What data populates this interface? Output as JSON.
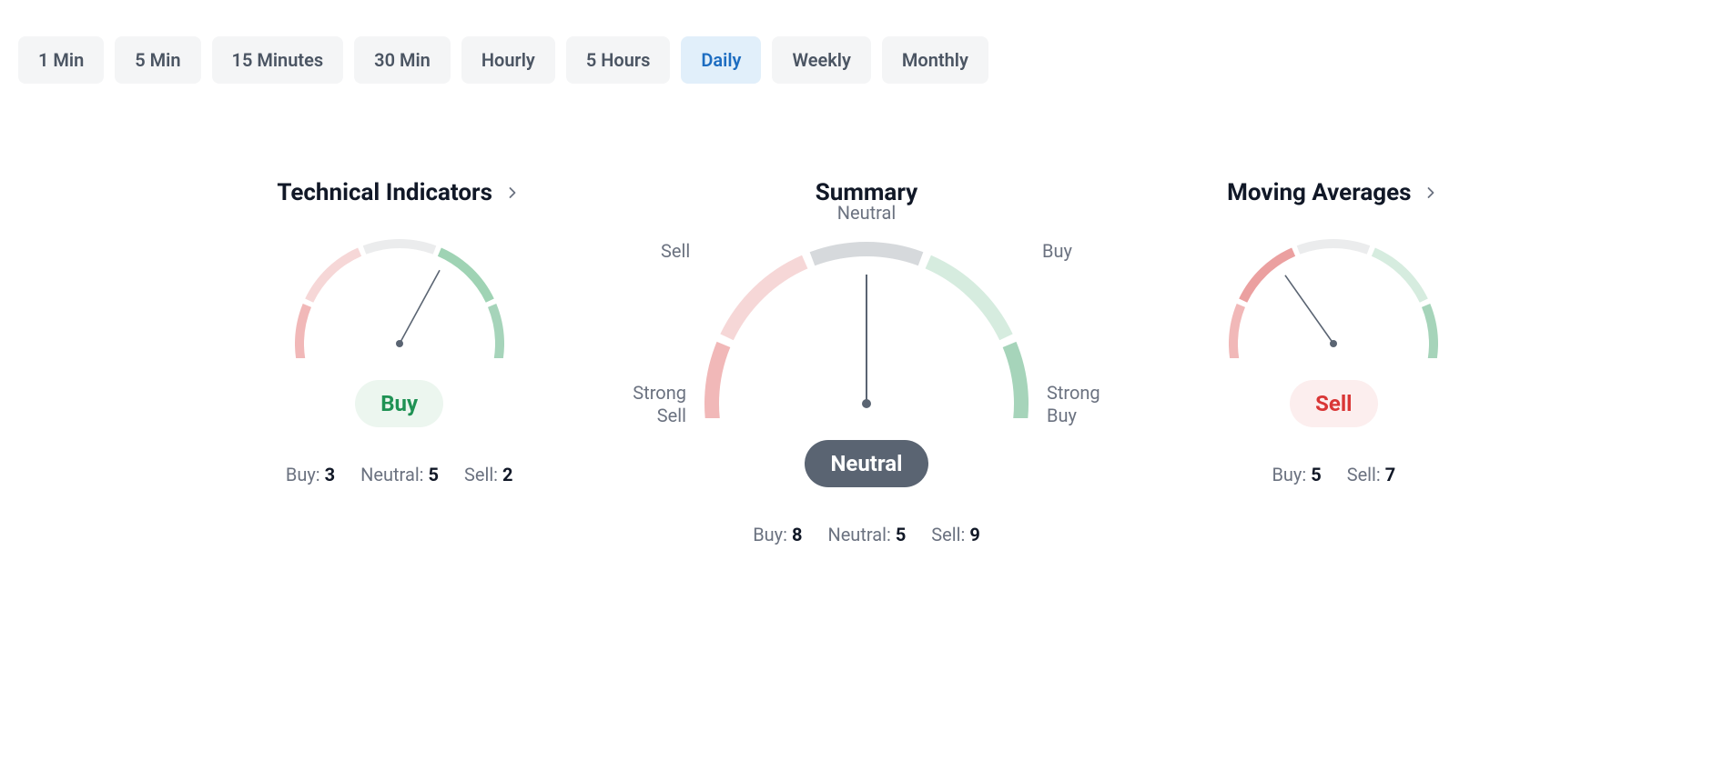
{
  "timeframes": {
    "items": [
      "1 Min",
      "5 Min",
      "15 Minutes",
      "30 Min",
      "Hourly",
      "5 Hours",
      "Daily",
      "Weekly",
      "Monthly"
    ],
    "active_index": 6,
    "tab_bg": "#f4f5f6",
    "tab_fg": "#4b5563",
    "tab_active_bg": "#e1effa",
    "tab_active_fg": "#1d6dc1"
  },
  "gauge_style": {
    "segments": [
      {
        "key": "strong_sell",
        "color": "#e04d4d",
        "faded_color": "#f1b8b8"
      },
      {
        "key": "sell",
        "color": "#eba0a0",
        "faded_color": "#f6d7d7"
      },
      {
        "key": "neutral",
        "color": "#d6d9dc",
        "faded_color": "#ebeced"
      },
      {
        "key": "buy",
        "color": "#9fd3b4",
        "faded_color": "#d6ecdf"
      },
      {
        "key": "strong_buy",
        "color": "#1f9254",
        "faded_color": "#a6d4ba"
      }
    ],
    "start_deg": 200,
    "end_deg": -20,
    "gap_deg": 3,
    "needle_color": "#5a6472",
    "background": "#ffffff"
  },
  "panels": {
    "left": {
      "title": "Technical Indicators",
      "has_chevron": true,
      "size": "small",
      "result": {
        "label": "Buy",
        "key": "buy",
        "bg": "#ecf6ef",
        "fg": "#1f9254"
      },
      "needle_value": 0.63,
      "active_segment": "buy",
      "labels": [],
      "stats": [
        {
          "label": "Buy:",
          "value": "3"
        },
        {
          "label": "Neutral:",
          "value": "5"
        },
        {
          "label": "Sell:",
          "value": "2"
        }
      ]
    },
    "center": {
      "title": "Summary",
      "has_chevron": false,
      "size": "large",
      "result": {
        "label": "Neutral",
        "key": "neutral",
        "bg": "#5a6472",
        "fg": "#ffffff"
      },
      "needle_value": 0.5,
      "active_segment": "neutral",
      "labels": [
        {
          "text": "Strong Sell",
          "pos": "ss"
        },
        {
          "text": "Sell",
          "pos": "s"
        },
        {
          "text": "Neutral",
          "pos": "n"
        },
        {
          "text": "Buy",
          "pos": "b"
        },
        {
          "text": "Strong Buy",
          "pos": "sb"
        }
      ],
      "stats": [
        {
          "label": "Buy:",
          "value": "8"
        },
        {
          "label": "Neutral:",
          "value": "5"
        },
        {
          "label": "Sell:",
          "value": "9"
        }
      ]
    },
    "right": {
      "title": "Moving Averages",
      "has_chevron": true,
      "size": "small",
      "result": {
        "label": "Sell",
        "key": "sell",
        "bg": "#fceeee",
        "fg": "#d93636"
      },
      "needle_value": 0.34,
      "active_segment": "sell",
      "labels": [],
      "stats": [
        {
          "label": "Buy:",
          "value": "5"
        },
        {
          "label": "Sell:",
          "value": "7"
        }
      ]
    }
  }
}
